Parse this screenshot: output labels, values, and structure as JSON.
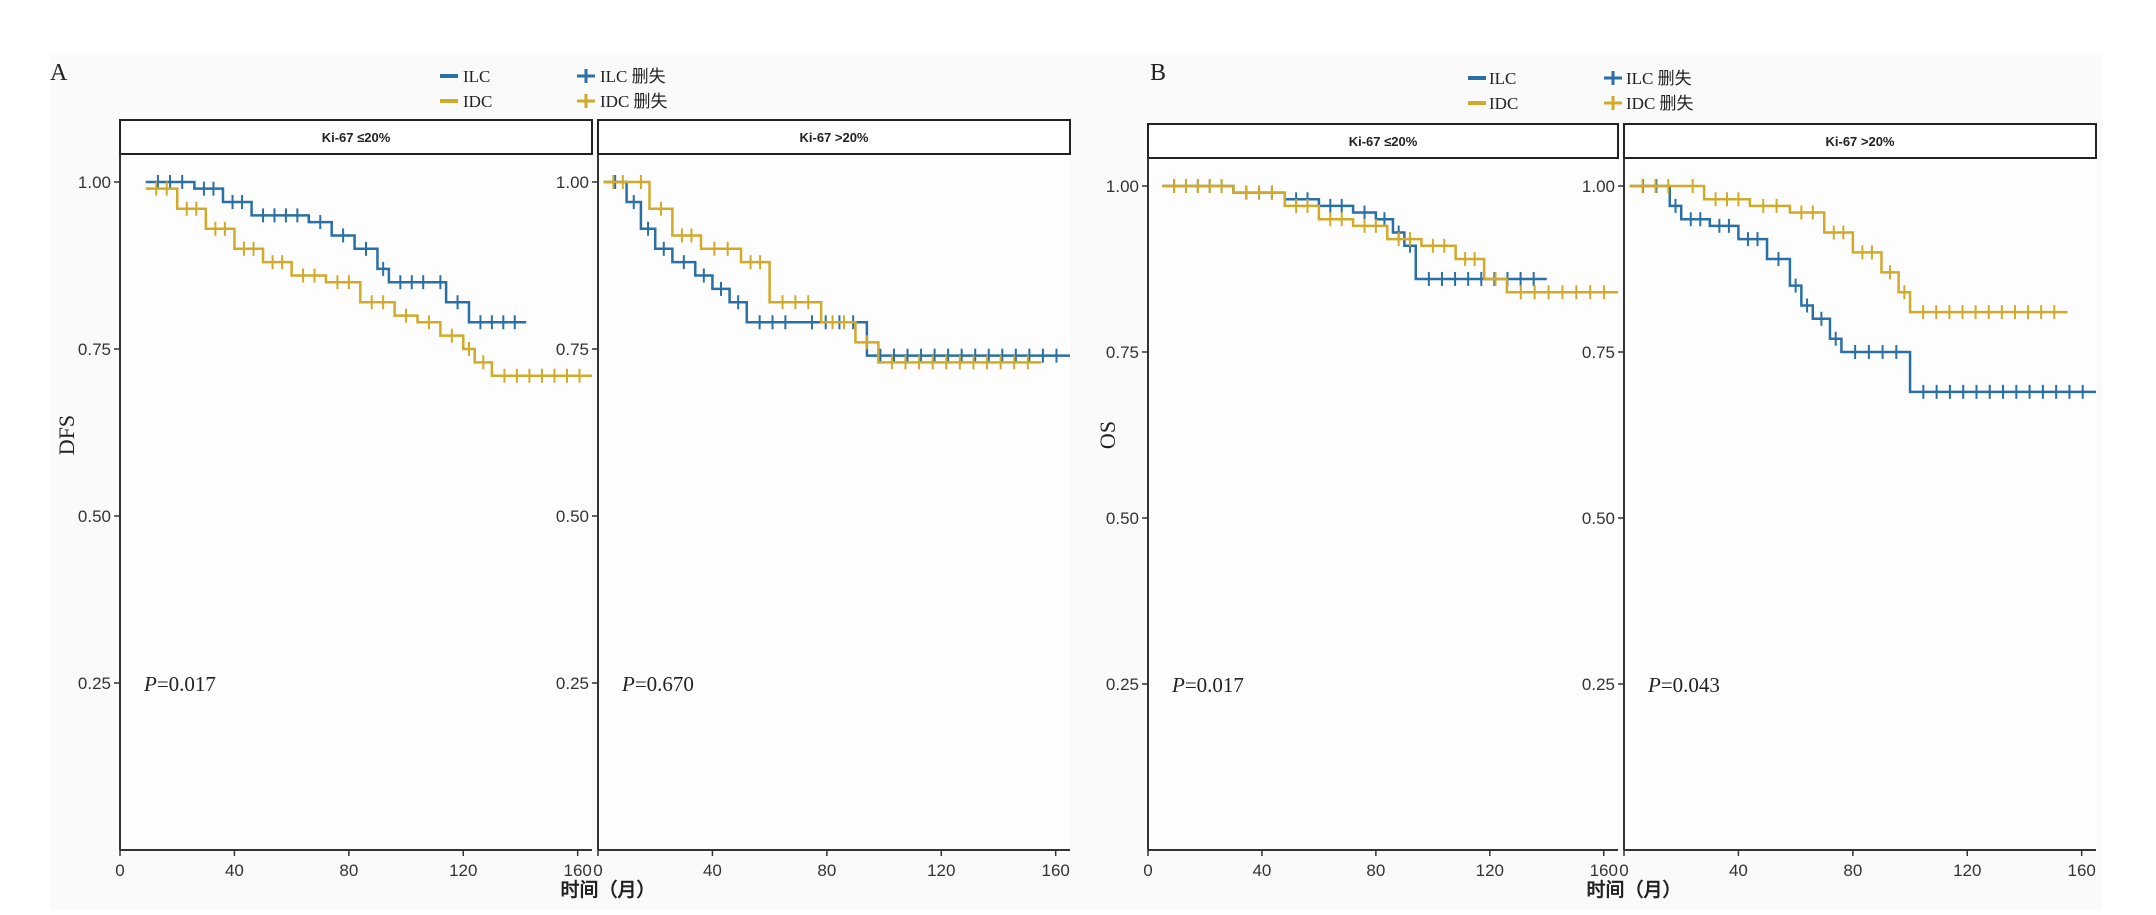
{
  "colors": {
    "ILC": "#2a6fa5",
    "IDC": "#d2aa2a",
    "axis": "#333333",
    "panel_bg": "#fdfdfd"
  },
  "figure_labels": {
    "A": "A",
    "B": "B"
  },
  "legend": {
    "ilc": "ILC",
    "idc": "IDC",
    "ilc_censor": "ILC 删失",
    "idc_censor": "IDC 删失"
  },
  "y_labels": {
    "A": "DFS",
    "B": "OS"
  },
  "x_label": "时间（月）",
  "chart_data": [
    {
      "type": "line",
      "figure": "A",
      "title": "Ki-67 ≤20%",
      "ylabel": "DFS",
      "xlabel": "时间（月）",
      "xlim": [
        0,
        165
      ],
      "ylim": [
        0,
        1.04
      ],
      "xticks": [
        0,
        40,
        80,
        120,
        160
      ],
      "yticks": [
        0.25,
        0.5,
        0.75,
        1.0
      ],
      "p_value": "0.017",
      "series": [
        {
          "name": "ILC",
          "x": [
            9,
            26,
            36,
            46,
            66,
            74,
            82,
            90,
            94,
            110,
            114,
            122,
            142
          ],
          "y": [
            1.0,
            0.99,
            0.97,
            0.95,
            0.94,
            0.92,
            0.9,
            0.87,
            0.85,
            0.85,
            0.82,
            0.79,
            0.79
          ]
        },
        {
          "name": "IDC",
          "x": [
            9,
            20,
            30,
            40,
            50,
            60,
            72,
            84,
            96,
            104,
            112,
            120,
            124,
            130,
            165
          ],
          "y": [
            0.99,
            0.96,
            0.93,
            0.9,
            0.88,
            0.86,
            0.85,
            0.82,
            0.8,
            0.79,
            0.77,
            0.75,
            0.73,
            0.71,
            0.71
          ]
        }
      ]
    },
    {
      "type": "line",
      "figure": "A",
      "title": "Ki-67 >20%",
      "ylabel": "DFS",
      "xlabel": "时间（月）",
      "xlim": [
        0,
        165
      ],
      "ylim": [
        0,
        1.04
      ],
      "xticks": [
        0,
        40,
        80,
        120,
        160
      ],
      "yticks": [
        0.25,
        0.5,
        0.75,
        1.0
      ],
      "p_value": "0.670",
      "series": [
        {
          "name": "ILC",
          "x": [
            2,
            10,
            15,
            20,
            26,
            34,
            40,
            46,
            52,
            70,
            94,
            165
          ],
          "y": [
            1.0,
            0.97,
            0.93,
            0.9,
            0.88,
            0.86,
            0.84,
            0.82,
            0.79,
            0.79,
            0.74,
            0.74
          ]
        },
        {
          "name": "IDC",
          "x": [
            2,
            12,
            18,
            26,
            36,
            50,
            60,
            78,
            90,
            98,
            155
          ],
          "y": [
            1.0,
            1.0,
            0.96,
            0.92,
            0.9,
            0.88,
            0.82,
            0.79,
            0.76,
            0.73,
            0.73
          ]
        }
      ]
    },
    {
      "type": "line",
      "figure": "B",
      "title": "Ki-67 ≤20%",
      "ylabel": "OS",
      "xlabel": "时间（月）",
      "xlim": [
        0,
        165
      ],
      "ylim": [
        0,
        1.04
      ],
      "xticks": [
        0,
        40,
        80,
        120,
        160
      ],
      "yticks": [
        0.25,
        0.5,
        0.75,
        1.0
      ],
      "p_value": "0.017",
      "series": [
        {
          "name": "ILC",
          "x": [
            5,
            30,
            48,
            60,
            72,
            80,
            86,
            90,
            94,
            140
          ],
          "y": [
            1.0,
            0.99,
            0.98,
            0.97,
            0.96,
            0.95,
            0.93,
            0.91,
            0.86,
            0.86
          ]
        },
        {
          "name": "IDC",
          "x": [
            5,
            30,
            48,
            60,
            72,
            84,
            96,
            108,
            118,
            126,
            165
          ],
          "y": [
            1.0,
            0.99,
            0.97,
            0.95,
            0.94,
            0.92,
            0.91,
            0.89,
            0.86,
            0.84,
            0.84
          ]
        }
      ]
    },
    {
      "type": "line",
      "figure": "B",
      "title": "Ki-67 >20%",
      "ylabel": "OS",
      "xlabel": "时间（月）",
      "xlim": [
        0,
        165
      ],
      "ylim": [
        0,
        1.04
      ],
      "xticks": [
        0,
        40,
        80,
        120,
        160
      ],
      "yticks": [
        0.25,
        0.5,
        0.75,
        1.0
      ],
      "p_value": "0.043",
      "series": [
        {
          "name": "ILC",
          "x": [
            2,
            16,
            20,
            30,
            40,
            50,
            58,
            62,
            66,
            72,
            76,
            100,
            165
          ],
          "y": [
            1.0,
            0.97,
            0.95,
            0.94,
            0.92,
            0.89,
            0.85,
            0.82,
            0.8,
            0.77,
            0.75,
            0.69,
            0.69
          ]
        },
        {
          "name": "IDC",
          "x": [
            2,
            20,
            28,
            44,
            58,
            70,
            80,
            90,
            96,
            100,
            155
          ],
          "y": [
            1.0,
            1.0,
            0.98,
            0.97,
            0.96,
            0.93,
            0.9,
            0.87,
            0.84,
            0.81,
            0.81
          ]
        }
      ]
    }
  ]
}
